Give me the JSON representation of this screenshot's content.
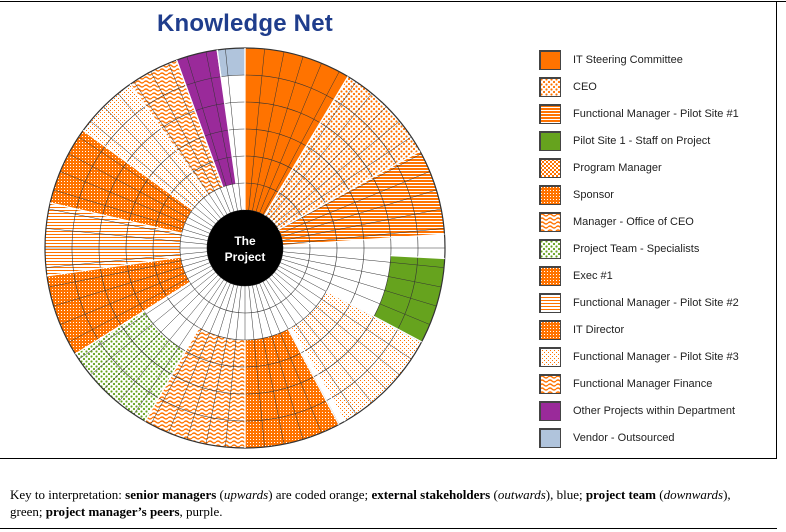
{
  "title": "Knowledge Net",
  "center_label": [
    "The",
    "Project"
  ],
  "colors": {
    "orange": "#ff7300",
    "green": "#66a31e",
    "purple": "#9a2a9a",
    "blue": "#b0c4dc",
    "title": "#1f3d8c"
  },
  "legend": [
    {
      "label": "IT Steering Committee",
      "color": "#ff7300",
      "pattern": "solid"
    },
    {
      "label": "CEO",
      "color": "#ff7300",
      "pattern": "dots-sparse"
    },
    {
      "label": "Functional Manager - Pilot Site #1",
      "color": "#ff7300",
      "pattern": "hlines"
    },
    {
      "label": "Pilot Site 1 - Staff on Project",
      "color": "#66a31e",
      "pattern": "solid"
    },
    {
      "label": "Program Manager",
      "color": "#ff7300",
      "pattern": "checker"
    },
    {
      "label": "Sponsor",
      "color": "#ff7300",
      "pattern": "dots-dense"
    },
    {
      "label": "Manager - Office of CEO",
      "color": "#ff7300",
      "pattern": "waves"
    },
    {
      "label": "Project Team - Specialists",
      "color": "#66a31e",
      "pattern": "dots-sparse"
    },
    {
      "label": "Exec #1",
      "color": "#ff7300",
      "pattern": "dots-dense"
    },
    {
      "label": "Functional Manager - Pilot Site #2",
      "color": "#ff7300",
      "pattern": "hlines-light"
    },
    {
      "label": "IT Director",
      "color": "#ff7300",
      "pattern": "dots-dense"
    },
    {
      "label": "Functional Manager - Pilot Site #3",
      "color": "#ff7300",
      "pattern": "dots-light"
    },
    {
      "label": "Functional Manager Finance",
      "color": "#ff7300",
      "pattern": "waves"
    },
    {
      "label": "Other Projects within Department",
      "color": "#9a2a9a",
      "pattern": "solid"
    },
    {
      "label": "Vendor - Outsourced",
      "color": "#b0c4dc",
      "pattern": "solid"
    }
  ],
  "key": {
    "p1": "Key to interpretation: ",
    "b1": "senior managers",
    "p2": " (",
    "i1": "upwards",
    "p3": ") are coded orange; ",
    "b2": "external stakeholders",
    "p4": " (",
    "i2": "outwards",
    "p5": "), blue; ",
    "b3": "project team",
    "p6": " (",
    "i3": "downwards",
    "p7": "), green; ",
    "b4": "project manager’s peers",
    "p8": ", purple."
  },
  "chart_data": {
    "type": "radial-bar",
    "title": "Knowledge Net",
    "center": "The Project",
    "rings": 6,
    "segments": [
      {
        "label": "IT Steering Committee",
        "start_deg": 0,
        "end_deg": 31,
        "level": 6
      },
      {
        "label": "CEO",
        "start_deg": 31,
        "end_deg": 61,
        "level": 6
      },
      {
        "label": "Functional Manager - Pilot Site #1",
        "start_deg": 61,
        "end_deg": 86,
        "level": 6
      },
      {
        "label": "(unlabelled)",
        "start_deg": 86,
        "end_deg": 93,
        "level": 0
      },
      {
        "label": "Pilot Site 1 - Staff on Project",
        "start_deg": 93,
        "end_deg": 118,
        "level": 2
      },
      {
        "label": "Functional Manager - Pilot Site #3",
        "start_deg": 118,
        "end_deg": 150,
        "level": 4
      },
      {
        "label": "(unlabelled)",
        "start_deg": 150,
        "end_deg": 152,
        "level": 0
      },
      {
        "label": "Exec #1",
        "start_deg": 152,
        "end_deg": 180,
        "level": 4
      },
      {
        "label": "Manager - Office of CEO",
        "start_deg": 180,
        "end_deg": 210,
        "level": 4
      },
      {
        "label": "Project Team - Specialists",
        "start_deg": 210,
        "end_deg": 238,
        "level": 3
      },
      {
        "label": "Sponsor",
        "start_deg": 238,
        "end_deg": 262,
        "level": 5
      },
      {
        "label": "Functional Manager - Pilot Site #2",
        "start_deg": 262,
        "end_deg": 283,
        "level": 5
      },
      {
        "label": "IT Director",
        "start_deg": 283,
        "end_deg": 306,
        "level": 5
      },
      {
        "label": "Functional Manager - Pilot Site #3",
        "start_deg": 306,
        "end_deg": 325,
        "level": 5
      },
      {
        "label": "Functional Manager Finance",
        "start_deg": 325,
        "end_deg": 340,
        "level": 5
      },
      {
        "label": "Other Projects within Department",
        "start_deg": 340,
        "end_deg": 352,
        "level": 5
      },
      {
        "label": "Vendor - Outsourced",
        "start_deg": 352,
        "end_deg": 360,
        "level": 1
      }
    ]
  }
}
